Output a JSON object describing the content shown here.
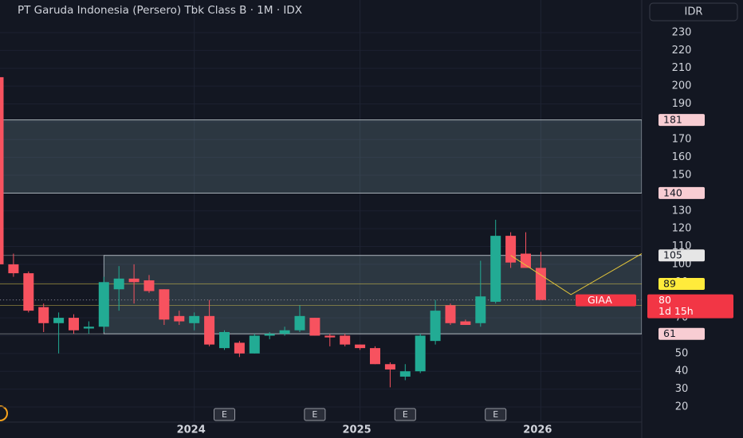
{
  "chart_data": {
    "type": "candlestick",
    "title": "PT Garuda Indonesia (Persero) Tbk Class B · 1M · IDX",
    "currency": "IDR",
    "symbol": "GIAA",
    "categories": [
      null,
      null,
      null,
      null,
      null,
      null,
      null,
      null,
      null,
      null,
      null,
      null,
      null,
      "2024",
      null,
      null,
      null,
      null,
      null,
      null,
      null,
      null,
      null,
      null,
      "2025",
      null,
      null,
      null,
      null,
      null,
      null,
      null,
      null,
      null,
      null,
      null,
      "2026"
    ],
    "open": [
      205,
      100,
      95,
      76,
      67,
      70,
      64,
      65,
      86,
      92,
      91,
      86,
      71,
      67,
      71,
      53,
      56,
      50,
      60,
      61,
      63,
      70,
      60,
      60,
      55,
      53,
      44,
      37,
      40,
      57,
      77,
      68,
      67,
      79,
      116,
      106,
      98
    ],
    "high": [
      205,
      106,
      96,
      78,
      73,
      72,
      68,
      93,
      99,
      100,
      94,
      86,
      74,
      73,
      80,
      63,
      57,
      61,
      62,
      65,
      77,
      70,
      61,
      61,
      55,
      54,
      45,
      44,
      61,
      80,
      78,
      69,
      102,
      125,
      118,
      118,
      107
    ],
    "low": [
      98,
      93,
      73,
      62,
      50,
      61,
      61,
      62,
      74,
      78,
      84,
      66,
      66,
      63,
      54,
      52,
      48,
      50,
      58,
      60,
      62,
      60,
      54,
      54,
      52,
      44,
      31,
      35,
      39,
      55,
      66,
      66,
      65,
      78,
      98,
      99,
      80
    ],
    "close": [
      100,
      95,
      74,
      67,
      70,
      63,
      65,
      90,
      92,
      90,
      85,
      69,
      68,
      71,
      55,
      62,
      50,
      60,
      61,
      63,
      71,
      60,
      59,
      55,
      53,
      44,
      41,
      40,
      60,
      74,
      67,
      66,
      82,
      116,
      101,
      98,
      80
    ],
    "up_color": "#22ab94",
    "down_color": "#f7525f",
    "ylim": [
      11.5,
      248.3
    ],
    "yticks": [
      20,
      30,
      40,
      50,
      60,
      70,
      80,
      90,
      100,
      110,
      120,
      130,
      140,
      150,
      160,
      170,
      180,
      190,
      200,
      210,
      220,
      230
    ],
    "zones": [
      {
        "from": 181,
        "to": 140,
        "start": 0
      },
      {
        "from": 105,
        "to": 61,
        "start": 7
      }
    ],
    "levels": [
      {
        "value": 181,
        "color": "#f8cdd3"
      },
      {
        "value": 140,
        "color": "#f8cdd3"
      },
      {
        "value": 105,
        "color": "#e6e6e6"
      },
      {
        "value": 89,
        "color": "#ffeb3b"
      },
      {
        "value": 77,
        "color": "#ffeb3b"
      },
      {
        "value": 61,
        "color": "#f8cdd3"
      }
    ],
    "current": {
      "value": 80,
      "countdown": "1d 15h",
      "color": "#f23645"
    },
    "projection": {
      "color": "#e3c53a",
      "x": [
        34,
        38,
        42.7
      ],
      "values": [
        105,
        83,
        106
      ]
    },
    "events": [
      {
        "at": 15,
        "label": "E"
      },
      {
        "at": 21,
        "label": "E"
      },
      {
        "at": 27,
        "label": "E"
      },
      {
        "at": 33,
        "label": "E"
      }
    ]
  }
}
